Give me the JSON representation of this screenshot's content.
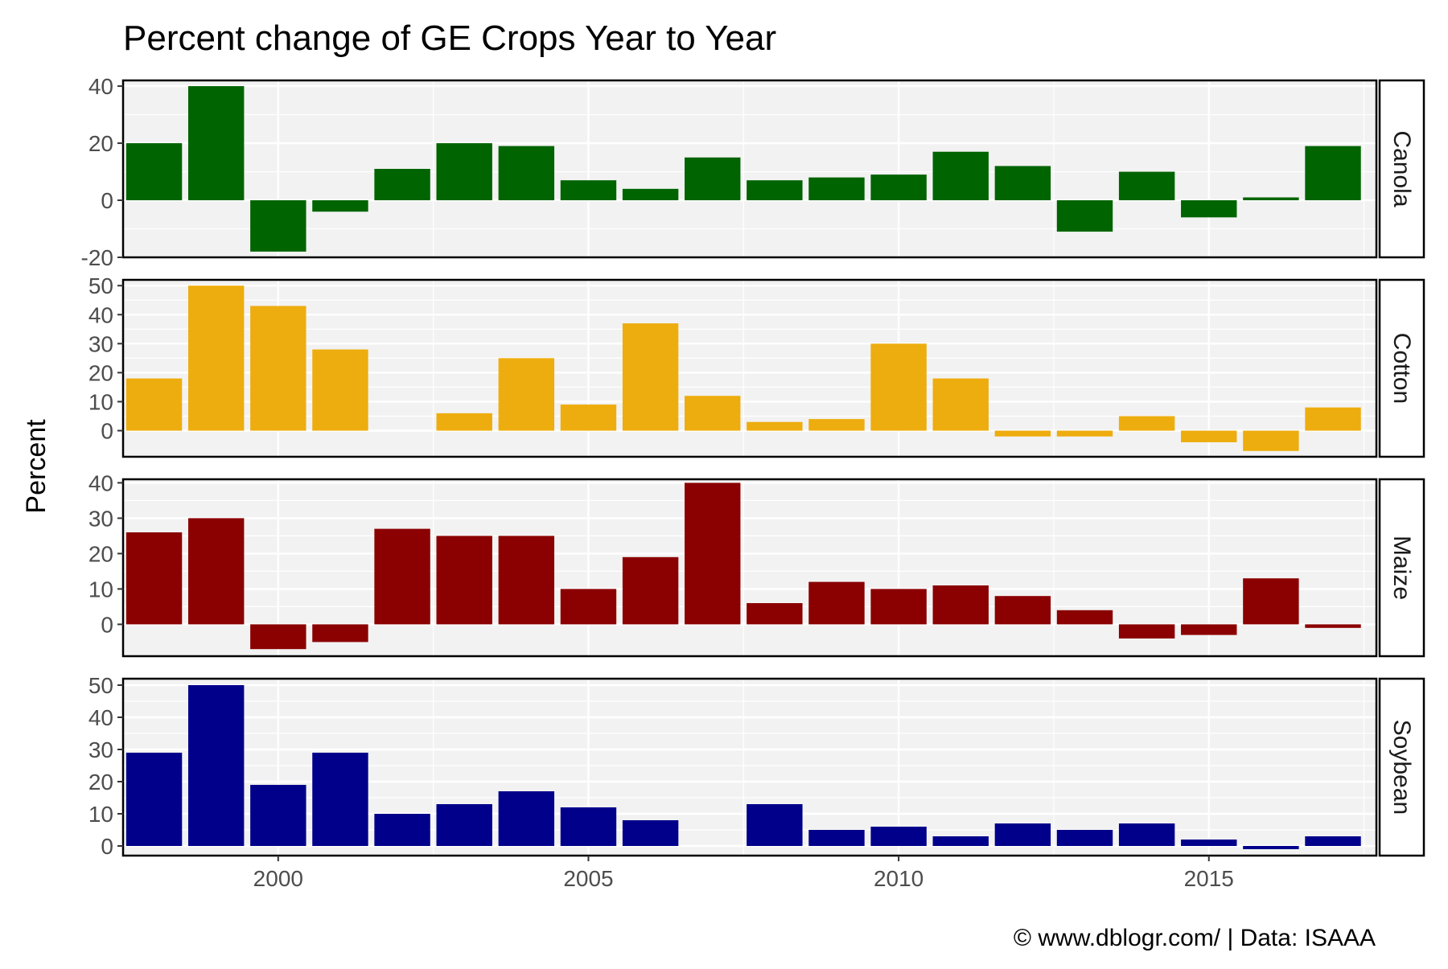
{
  "chart_data": {
    "type": "bar",
    "title": "Percent change of GE Crops Year to Year",
    "ylabel": "Percent",
    "xlabel": "",
    "caption": "© www.dblogr.com/  |  Data: ISAAA",
    "x": [
      1998,
      1999,
      2000,
      2001,
      2002,
      2003,
      2004,
      2005,
      2006,
      2007,
      2008,
      2009,
      2010,
      2011,
      2012,
      2013,
      2014,
      2015,
      2016,
      2017
    ],
    "xlim": [
      1997.5,
      2017.7
    ],
    "x_ticks": [
      2000,
      2005,
      2010,
      2015
    ],
    "grid": true,
    "facets": [
      {
        "name": "Canola",
        "color": "#006400",
        "ylim": [
          -20,
          42
        ],
        "y_ticks": [
          -20,
          0,
          20,
          40
        ],
        "values": [
          20,
          40,
          -18,
          -4,
          11,
          20,
          19,
          7,
          4,
          15,
          7,
          8,
          9,
          17,
          12,
          -11,
          10,
          -6,
          1,
          19
        ]
      },
      {
        "name": "Cotton",
        "color": "#EEAD0E",
        "ylim": [
          -9,
          52
        ],
        "y_ticks": [
          0,
          10,
          20,
          30,
          40,
          50
        ],
        "values": [
          18,
          50,
          43,
          28,
          0,
          6,
          25,
          9,
          37,
          12,
          3,
          4,
          30,
          18,
          -2,
          -2,
          5,
          -4,
          -7,
          8
        ]
      },
      {
        "name": "Maize",
        "color": "#8B0000",
        "ylim": [
          -9,
          41
        ],
        "y_ticks": [
          0,
          10,
          20,
          30,
          40
        ],
        "values": [
          26,
          30,
          -7,
          -5,
          27,
          25,
          25,
          10,
          19,
          40,
          6,
          12,
          10,
          11,
          8,
          4,
          -4,
          -3,
          13,
          -1
        ]
      },
      {
        "name": "Soybean",
        "color": "#00008B",
        "ylim": [
          -3,
          52
        ],
        "y_ticks": [
          0,
          10,
          20,
          30,
          40,
          50
        ],
        "values": [
          29,
          50,
          19,
          29,
          10,
          13,
          17,
          12,
          8,
          0,
          13,
          5,
          6,
          3,
          7,
          5,
          7,
          2,
          -1,
          3
        ]
      }
    ]
  }
}
